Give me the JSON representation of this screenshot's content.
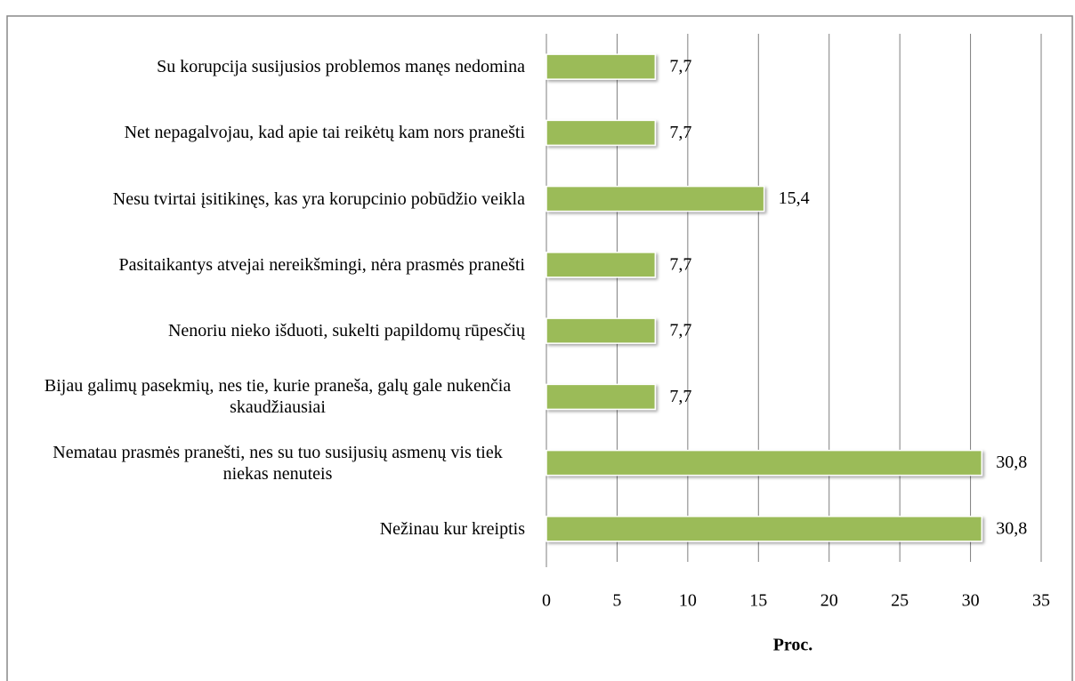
{
  "chart_data": {
    "type": "bar",
    "orientation": "horizontal",
    "categories": [
      "Su korupcija susijusios problemos manęs nedomina",
      "Net nepagalvojau, kad apie tai reikėtų kam nors pranešti",
      "Nesu tvirtai įsitikinęs, kas yra korupcinio pobūdžio veikla",
      "Pasitaikantys atvejai nereikšmingi, nėra prasmės pranešti",
      "Nenoriu nieko išduoti, sukelti papildomų rūpesčių",
      "Bijau galimų pasekmių, nes tie, kurie praneša, galų gale nukenčia skaudžiausiai",
      "Nematau prasmės pranešti, nes su tuo susijusių asmenų vis tiek niekas nenuteis",
      "Nežinau kur kreiptis"
    ],
    "values": [
      7.7,
      7.7,
      15.4,
      7.7,
      7.7,
      7.7,
      30.8,
      30.8
    ],
    "value_labels": [
      "7,7",
      "7,7",
      "15,4",
      "7,7",
      "7,7",
      "7,7",
      "30,8",
      "30,8"
    ],
    "color": "#9bbb59",
    "xlabel": "Proc.",
    "xlim": [
      0,
      35
    ],
    "xticks": [
      0,
      5,
      10,
      15,
      20,
      25,
      30,
      35
    ],
    "grid": true
  }
}
